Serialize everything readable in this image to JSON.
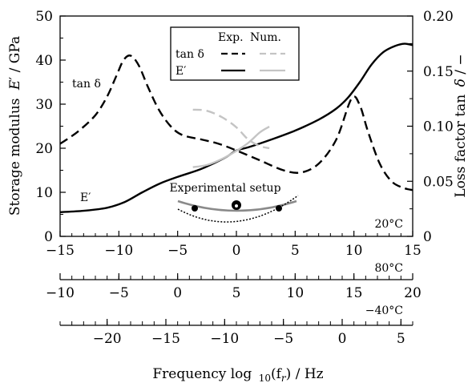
{
  "chart_data": {
    "type": "line",
    "x_axis": {
      "label": "Frequency log 10(f r) / Hz",
      "label_parts": [
        "Frequency log",
        "10",
        "(f",
        "r",
        ") / Hz"
      ],
      "range": [
        -15,
        15
      ],
      "ticks": [
        "−15",
        "−10",
        "−5",
        "0",
        "5",
        "10",
        "15"
      ],
      "tick_values": [
        -15,
        -10,
        -5,
        0,
        5,
        10,
        15
      ],
      "reference_temperature": "20°C"
    },
    "secondary_x_axes": [
      {
        "temperature": "80°C",
        "ticks": [
          "−10",
          "−5",
          "0",
          "5",
          "10",
          "15",
          "20"
        ],
        "tick_values": [
          -10,
          -5,
          0,
          5,
          10,
          15,
          20
        ],
        "shift": 5
      },
      {
        "temperature": "−40°C",
        "ticks": [
          "−20",
          "−15",
          "−10",
          "−5",
          "0",
          "5"
        ],
        "tick_values": [
          -20,
          -15,
          -10,
          -5,
          0,
          5
        ],
        "shift": -9
      }
    ],
    "y_left": {
      "label": "Storage modulus E′ / GPa",
      "label_parts": [
        "Storage modulus",
        "E",
        "′",
        " / GPa"
      ],
      "range": [
        0,
        50
      ],
      "ticks": [
        "0",
        "10",
        "20",
        "30",
        "40",
        "50"
      ],
      "tick_values": [
        0,
        10,
        20,
        30,
        40,
        50
      ]
    },
    "y_right": {
      "label": "Loss factor tan δ / −",
      "label_parts": [
        "Loss factor tan",
        "δ",
        " / −"
      ],
      "range": [
        0,
        0.2
      ],
      "ticks": [
        "0",
        "0.05",
        "0.10",
        "0.15",
        "0.20"
      ],
      "tick_values": [
        0,
        0.05,
        0.1,
        0.15,
        0.2
      ]
    },
    "legend": {
      "position": "top-center",
      "headers": [
        "Exp.",
        "Num."
      ],
      "rows": [
        "tan δ",
        "E′"
      ]
    },
    "annotations": {
      "tan_label": "tan δ",
      "e_label": "E′",
      "setup_label": "Experimental setup"
    },
    "series": [
      {
        "name": "tan δ Exp.",
        "axis": "right",
        "style": "dashed",
        "color": "#000000",
        "x": [
          -15,
          -13.5,
          -12,
          -11,
          -10.2,
          -9.6,
          -9,
          -8.3,
          -7.5,
          -6.6,
          -5.6,
          -4.6,
          -3,
          -1.5,
          0,
          2,
          4,
          5.5,
          7,
          8.5,
          9.8,
          10.5,
          11.2,
          12.2,
          13.2,
          14.2,
          15
        ],
        "y": [
          0.084,
          0.095,
          0.11,
          0.127,
          0.146,
          0.16,
          0.164,
          0.155,
          0.135,
          0.115,
          0.1,
          0.092,
          0.088,
          0.084,
          0.078,
          0.069,
          0.06,
          0.058,
          0.066,
          0.088,
          0.125,
          0.119,
          0.095,
          0.066,
          0.05,
          0.044,
          0.042
        ]
      },
      {
        "name": "E′ Exp.",
        "axis": "left",
        "style": "solid",
        "color": "#000000",
        "x": [
          -15,
          -13,
          -11,
          -9.5,
          -8,
          -6.5,
          -5,
          -3,
          -1,
          0,
          1,
          3,
          5,
          7,
          8.5,
          9.5,
          10.5,
          11.5,
          12.5,
          13.5,
          14.3,
          15
        ],
        "y": [
          5.5,
          5.8,
          6.5,
          7.8,
          10,
          12,
          13.5,
          15.3,
          17.8,
          19.5,
          20.2,
          22,
          24,
          26.5,
          29,
          31.5,
          35,
          39,
          41.8,
          43.2,
          43.7,
          43.4
        ]
      },
      {
        "name": "tan δ Num.",
        "axis": "right",
        "style": "dashed",
        "color": "#c4c4c4",
        "x": [
          -3.7,
          -2.5,
          -1.2,
          0,
          1,
          2,
          2.8
        ],
        "y": [
          0.115,
          0.114,
          0.108,
          0.099,
          0.088,
          0.082,
          0.08
        ]
      },
      {
        "name": "E′ Num.",
        "axis": "left",
        "style": "solid",
        "color": "#c4c4c4",
        "x": [
          -3.7,
          -2.5,
          -1.2,
          0,
          1,
          2,
          2.8
        ],
        "y": [
          15.7,
          16.2,
          17.6,
          19.4,
          21.2,
          23.6,
          24.9
        ]
      }
    ],
    "grid": false
  }
}
